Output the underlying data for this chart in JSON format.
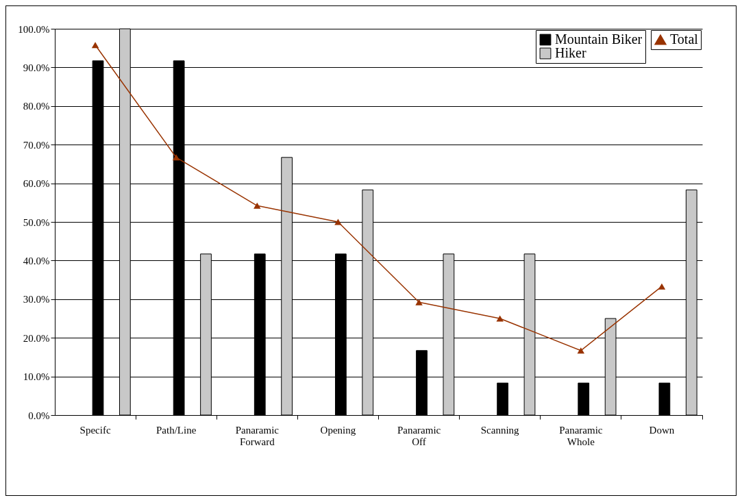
{
  "chart_data": {
    "type": "bar",
    "categories": [
      "Specifc",
      "Path/Line",
      "Panaramic Forward",
      "Opening",
      "Panaramic Off",
      "Scanning",
      "Panaramic Whole",
      "Down"
    ],
    "series": [
      {
        "name": "Mountain Biker",
        "color": "#000000",
        "values": [
          91.7,
          91.7,
          41.7,
          41.7,
          16.7,
          8.3,
          8.3,
          8.3
        ]
      },
      {
        "name": "Hiker",
        "color": "#c8c8c8",
        "values": [
          100,
          41.7,
          66.7,
          58.3,
          41.7,
          41.7,
          25,
          58.3
        ]
      },
      {
        "name": "Total",
        "type": "line",
        "color": "#993300",
        "marker": "triangle",
        "values": [
          95.8,
          66.7,
          54.2,
          50,
          29.2,
          25,
          16.7,
          33.3
        ]
      }
    ],
    "ylim": [
      0,
      100
    ],
    "yticks": [
      {
        "value": 0,
        "label": "0.0%"
      },
      {
        "value": 10,
        "label": "10.0%"
      },
      {
        "value": 20,
        "label": "20.0%"
      },
      {
        "value": 30,
        "label": "30.0%"
      },
      {
        "value": 40,
        "label": "40.0%"
      },
      {
        "value": 50,
        "label": "50.0%"
      },
      {
        "value": 60,
        "label": "60.0%"
      },
      {
        "value": 70,
        "label": "70.0%"
      },
      {
        "value": 80,
        "label": "80.0%"
      },
      {
        "value": 90,
        "label": "90.0%"
      },
      {
        "value": 100,
        "label": "100.0%"
      }
    ],
    "grid": "y",
    "legend": "top right"
  }
}
